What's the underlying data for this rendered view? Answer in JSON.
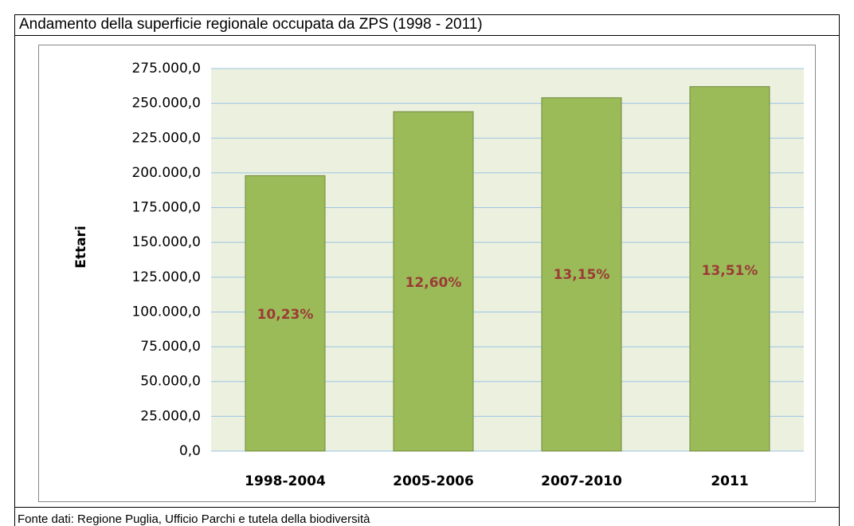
{
  "chart_data": {
    "type": "bar",
    "title": "Andamento della superficie regionale occupata da ZPS (1998 - 2011)",
    "ylabel": "Ettari",
    "source": "Fonte dati: Regione Puglia, Ufficio Parchi e tutela della biodiversità",
    "categories": [
      "1998-2004",
      "2005-2006",
      "2007-2010",
      "2011"
    ],
    "values": [
      198000,
      244000,
      254000,
      262000
    ],
    "annotations": [
      "10,23%",
      "12,60%",
      "13,15%",
      "13,51%"
    ],
    "color": "#9bbb59",
    "ylim": [
      0,
      275000
    ],
    "yticks": [
      {
        "value": 0,
        "label": "0,0"
      },
      {
        "value": 25000,
        "label": "25.000,0"
      },
      {
        "value": 50000,
        "label": "50.000,0"
      },
      {
        "value": 75000,
        "label": "75.000,0"
      },
      {
        "value": 100000,
        "label": "100.000,0"
      },
      {
        "value": 125000,
        "label": "125.000,0"
      },
      {
        "value": 150000,
        "label": "150.000,0"
      },
      {
        "value": 175000,
        "label": "175.000,0"
      },
      {
        "value": 200000,
        "label": "200.000,0"
      },
      {
        "value": 225000,
        "label": "225.000,0"
      },
      {
        "value": 250000,
        "label": "250.000,0"
      },
      {
        "value": 275000,
        "label": "275.000,0"
      }
    ],
    "grid": true
  }
}
